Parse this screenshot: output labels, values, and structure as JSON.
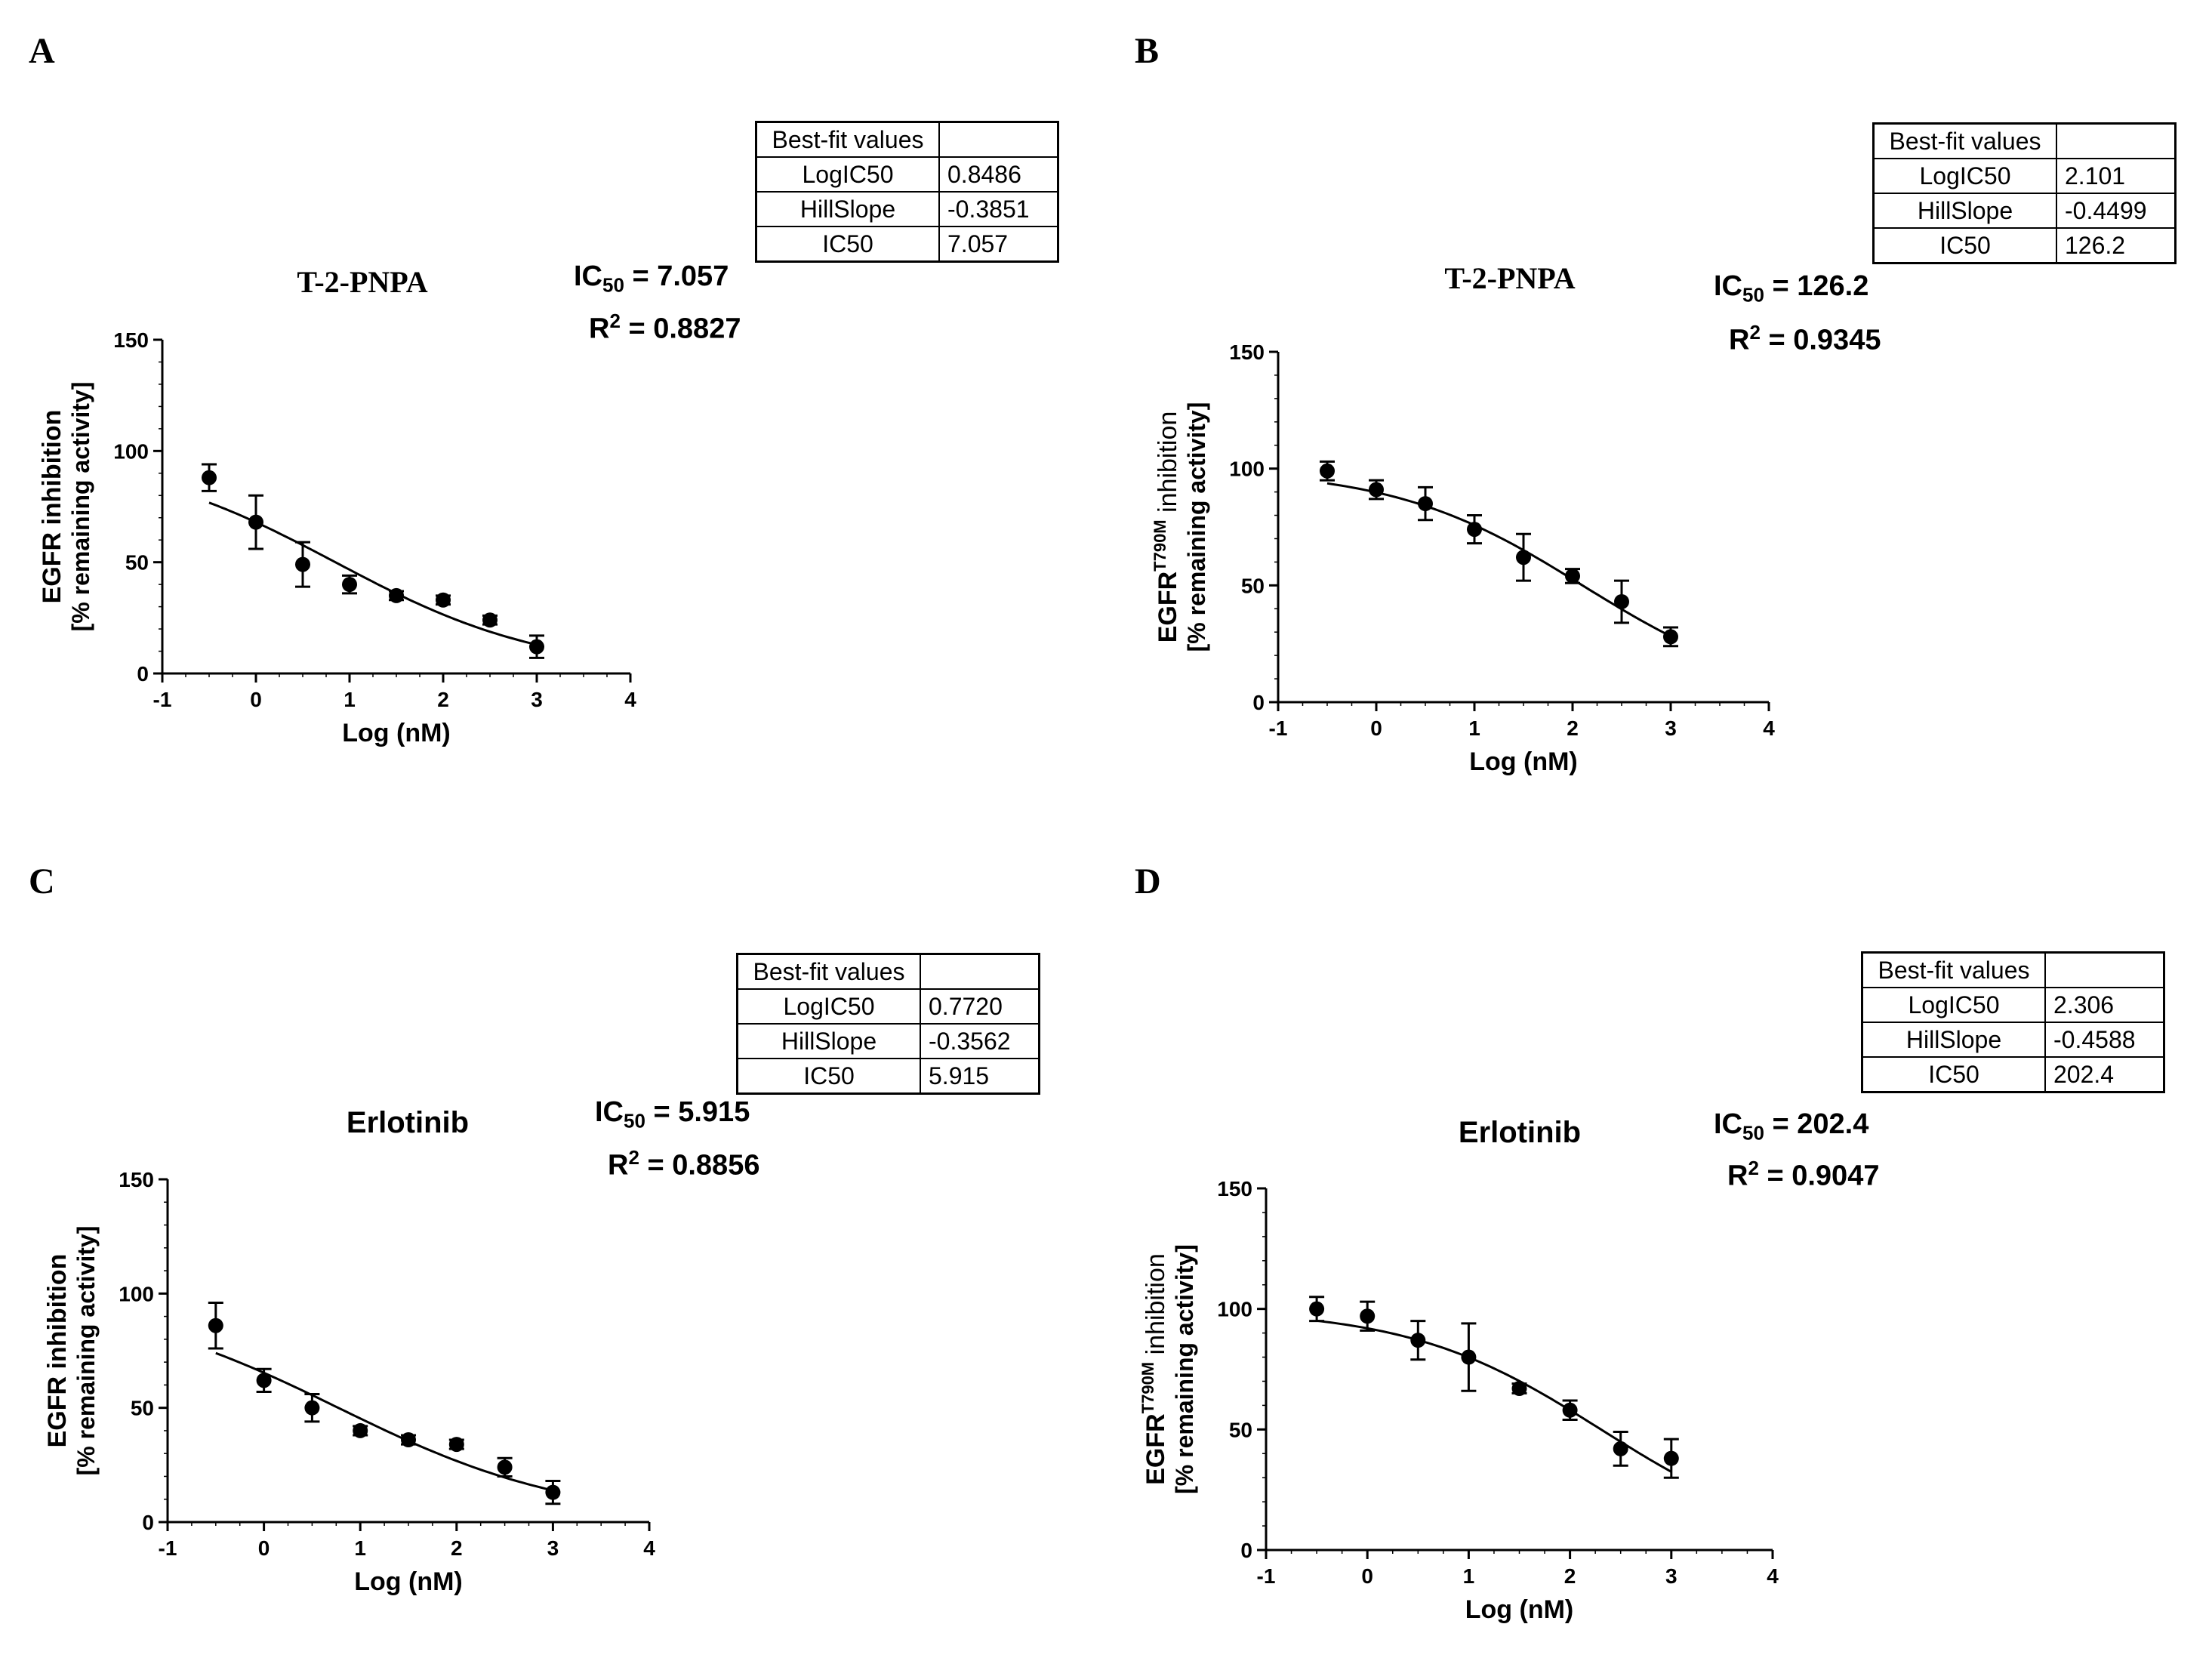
{
  "chart_data": [
    {
      "type": "scatter",
      "panel": "A",
      "title": "T-2-PNPA",
      "xlabel": "Log (nM)",
      "ylabel_line1": "EGFR inhibition",
      "ylabel_line2": "[% remaining activity]",
      "xlim": [
        -1,
        4
      ],
      "ylim": [
        0,
        150
      ],
      "xticks": [
        -1,
        0,
        1,
        2,
        3,
        4
      ],
      "yticks": [
        0,
        50,
        100,
        150
      ],
      "x": [
        -0.5,
        0,
        0.5,
        1,
        1.5,
        2,
        2.5,
        3
      ],
      "y": [
        88,
        68,
        49,
        40,
        35,
        33,
        24,
        12
      ],
      "error": [
        6,
        12,
        10,
        4,
        2,
        2,
        2,
        5
      ],
      "ic50_label": "IC",
      "ic50_sub": "50",
      "ic50_value": "= 7.057",
      "r2_label": "R",
      "r2_sup": "2",
      "r2_value": "= 0.8827",
      "best_fit_header": "Best-fit values",
      "best_fit": [
        {
          "name": "LogIC50",
          "value": "0.8486"
        },
        {
          "name": "HillSlope",
          "value": "-0.3851"
        },
        {
          "name": "IC50",
          "value": "7.057"
        }
      ]
    },
    {
      "type": "scatter",
      "panel": "B",
      "title": "T-2-PNPA",
      "xlabel": "Log (nM)",
      "ylabel_line1": "EGFR",
      "ylabel_sup": "T790M",
      "ylabel_line1_after": " inhibition",
      "ylabel_line2": "[% remaining activity]",
      "xlim": [
        -1,
        4
      ],
      "ylim": [
        0,
        150
      ],
      "xticks": [
        -1,
        0,
        1,
        2,
        3,
        4
      ],
      "yticks": [
        0,
        50,
        100,
        150
      ],
      "x": [
        -0.5,
        0,
        0.5,
        1,
        1.5,
        2,
        2.5,
        3
      ],
      "y": [
        99,
        91,
        85,
        74,
        62,
        54,
        43,
        28
      ],
      "error": [
        4,
        4,
        7,
        6,
        10,
        3,
        9,
        4
      ],
      "ic50_label": "IC",
      "ic50_sub": "50",
      "ic50_value": "= 126.2",
      "r2_label": "R",
      "r2_sup": "2",
      "r2_value": "= 0.9345",
      "best_fit_header": "Best-fit values",
      "best_fit": [
        {
          "name": "LogIC50",
          "value": "2.101"
        },
        {
          "name": "HillSlope",
          "value": "-0.4499"
        },
        {
          "name": "IC50",
          "value": "126.2"
        }
      ]
    },
    {
      "type": "scatter",
      "panel": "C",
      "title": "Erlotinib",
      "xlabel": "Log (nM)",
      "ylabel_line1": "EGFR inhibition",
      "ylabel_line2": "[% remaining activity]",
      "xlim": [
        -1,
        4
      ],
      "ylim": [
        0,
        150
      ],
      "xticks": [
        -1,
        0,
        1,
        2,
        3,
        4
      ],
      "yticks": [
        0,
        50,
        100,
        150
      ],
      "x": [
        -0.5,
        0,
        0.5,
        1,
        1.5,
        2,
        2.5,
        3
      ],
      "y": [
        86,
        62,
        50,
        40,
        36,
        34,
        24,
        13
      ],
      "error": [
        10,
        5,
        6,
        2,
        2,
        2,
        4,
        5
      ],
      "ic50_label": "IC",
      "ic50_sub": "50",
      "ic50_value": "= 5.915",
      "r2_label": "R",
      "r2_sup": "2",
      "r2_value": "= 0.8856",
      "best_fit_header": "Best-fit values",
      "best_fit": [
        {
          "name": "LogIC50",
          "value": "0.7720"
        },
        {
          "name": "HillSlope",
          "value": "-0.3562"
        },
        {
          "name": "IC50",
          "value": "5.915"
        }
      ]
    },
    {
      "type": "scatter",
      "panel": "D",
      "title": "Erlotinib",
      "xlabel": "Log (nM)",
      "ylabel_line1": "EGFR",
      "ylabel_sup": "T790M",
      "ylabel_line1_after": " inhibition",
      "ylabel_line2": "[% remaining activity]",
      "xlim": [
        -1,
        4
      ],
      "ylim": [
        0,
        150
      ],
      "xticks": [
        -1,
        0,
        1,
        2,
        3,
        4
      ],
      "yticks": [
        0,
        50,
        100,
        150
      ],
      "x": [
        -0.5,
        0,
        0.5,
        1,
        1.5,
        2,
        2.5,
        3
      ],
      "y": [
        100,
        97,
        87,
        80,
        67,
        58,
        42,
        38
      ],
      "error": [
        5,
        6,
        8,
        14,
        2,
        4,
        7,
        8
      ],
      "ic50_label": "IC",
      "ic50_sub": "50",
      "ic50_value": "= 202.4",
      "r2_label": "R",
      "r2_sup": "2",
      "r2_value": "= 0.9047",
      "best_fit_header": "Best-fit values",
      "best_fit": [
        {
          "name": "LogIC50",
          "value": "2.306"
        },
        {
          "name": "HillSlope",
          "value": "-0.4588"
        },
        {
          "name": "IC50",
          "value": "202.4"
        }
      ]
    }
  ]
}
